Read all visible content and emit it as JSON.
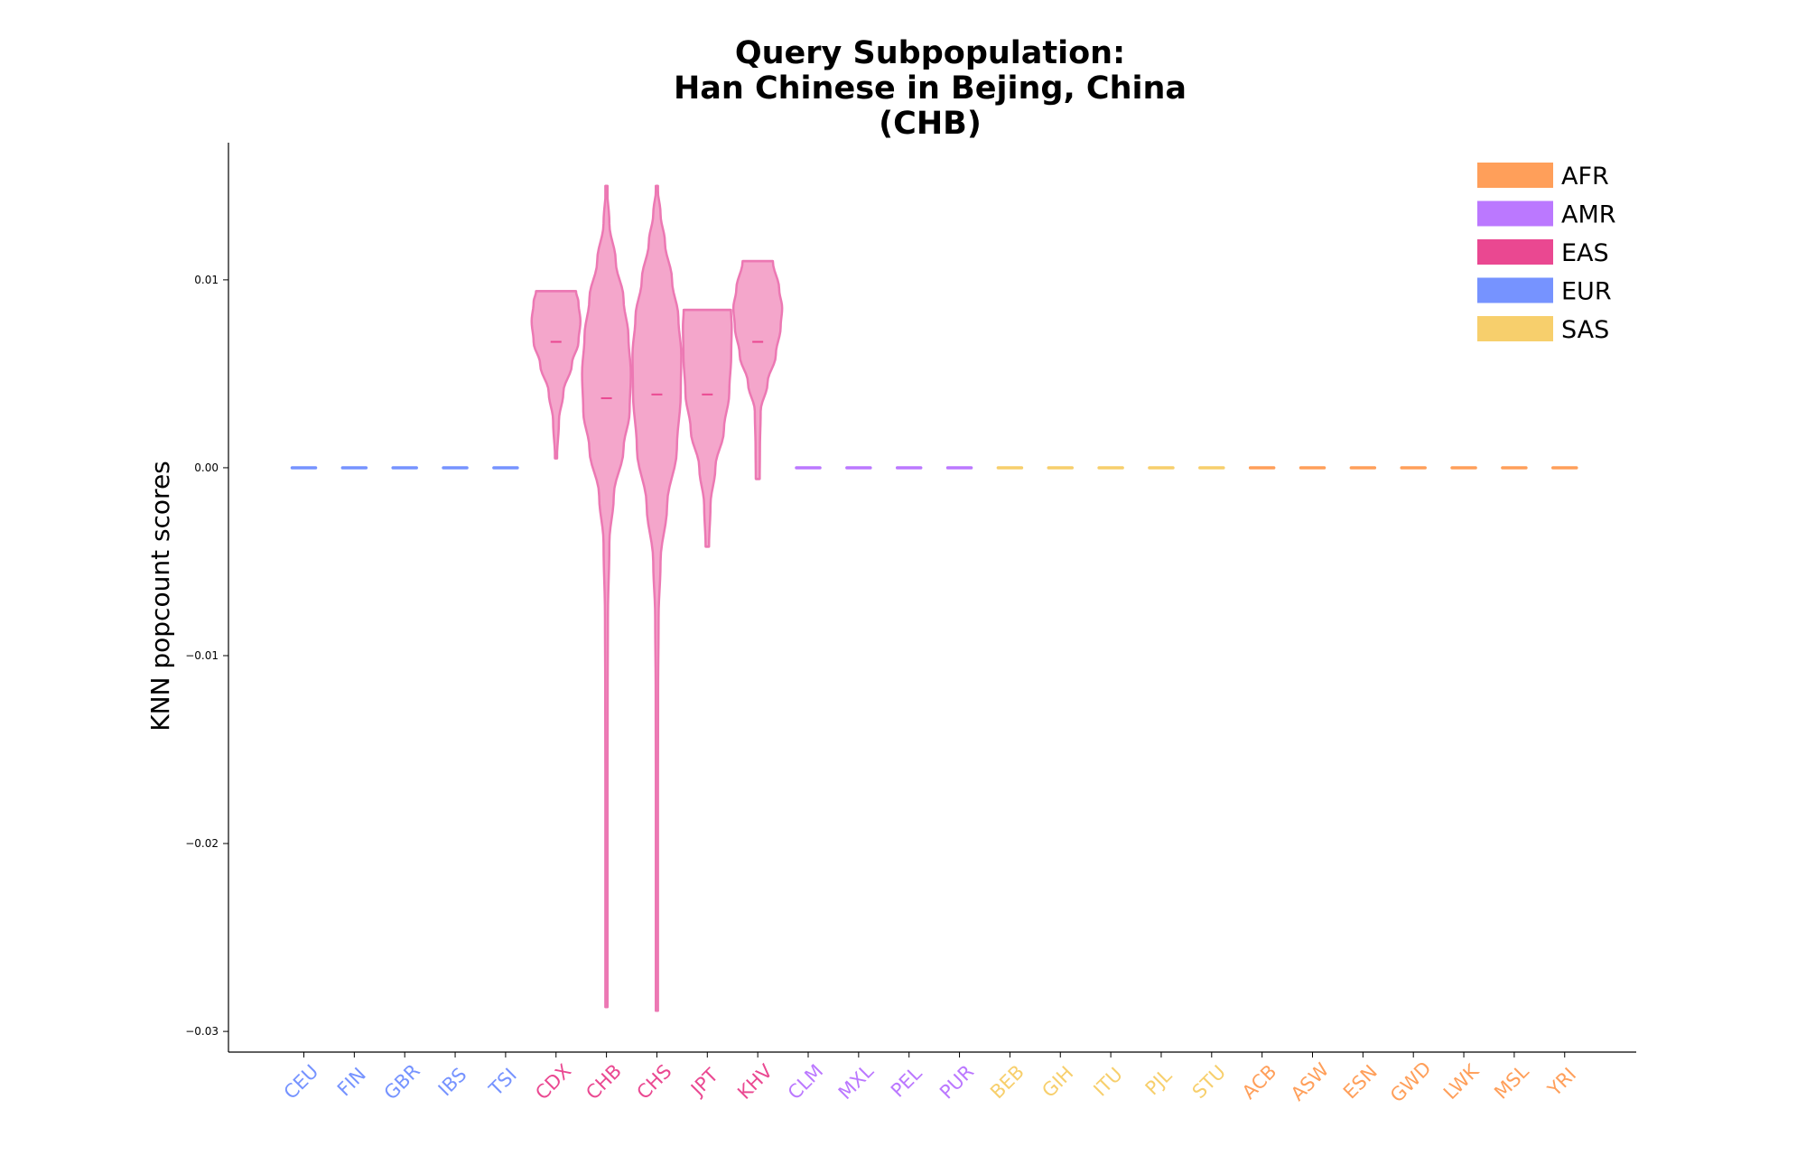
{
  "chart_data": {
    "type": "violin",
    "title_lines": [
      "Query Subpopulation:",
      "Han Chinese in Bejing, China",
      "(CHB)"
    ],
    "xlabel": "",
    "ylabel": "KNN popcount scores",
    "ylim": [
      -0.0311,
      0.0173
    ],
    "yticks": [
      {
        "value": 0.01,
        "label": "0.01"
      },
      {
        "value": 0.0,
        "label": "0.00"
      },
      {
        "value": -0.01,
        "label": "−0.01"
      },
      {
        "value": -0.02,
        "label": "−0.02"
      },
      {
        "value": -0.03,
        "label": "−0.03"
      }
    ],
    "grid": false,
    "legend_position": "top-right",
    "colors": {
      "AFR": "#ff9f5a",
      "AMR": "#bb78ff",
      "EAS": "#ea4891",
      "EUR": "#7693ff",
      "SAS": "#f7cf6c"
    },
    "legend": [
      {
        "name": "AFR",
        "color": "#ff9f5a"
      },
      {
        "name": "AMR",
        "color": "#bb78ff"
      },
      {
        "name": "EAS",
        "color": "#ea4891"
      },
      {
        "name": "EUR",
        "color": "#7693ff"
      },
      {
        "name": "SAS",
        "color": "#f7cf6c"
      }
    ],
    "violin_fill": "#f4a6cb",
    "violin_edge": "#ec78b3",
    "categories": [
      {
        "name": "CEU",
        "group": "EUR"
      },
      {
        "name": "FIN",
        "group": "EUR"
      },
      {
        "name": "GBR",
        "group": "EUR"
      },
      {
        "name": "IBS",
        "group": "EUR"
      },
      {
        "name": "TSI",
        "group": "EUR"
      },
      {
        "name": "CDX",
        "group": "EAS",
        "min": 0.0005,
        "max": 0.0094,
        "median": 0.0067,
        "profile": [
          [
            0.0005,
            0.04
          ],
          [
            0.0025,
            0.12
          ],
          [
            0.004,
            0.3
          ],
          [
            0.0055,
            0.65
          ],
          [
            0.0067,
            0.92
          ],
          [
            0.0078,
            1.0
          ],
          [
            0.0088,
            0.92
          ],
          [
            0.0094,
            0.82
          ]
        ]
      },
      {
        "name": "CHB",
        "group": "EAS",
        "min": -0.0287,
        "max": 0.015,
        "median": 0.0037,
        "profile": [
          [
            -0.0287,
            0.02
          ],
          [
            -0.02,
            0.04
          ],
          [
            -0.012,
            0.05
          ],
          [
            -0.008,
            0.06
          ],
          [
            -0.004,
            0.12
          ],
          [
            -0.0015,
            0.3
          ],
          [
            0.001,
            0.7
          ],
          [
            0.003,
            0.95
          ],
          [
            0.005,
            1.0
          ],
          [
            0.007,
            0.9
          ],
          [
            0.009,
            0.7
          ],
          [
            0.011,
            0.38
          ],
          [
            0.013,
            0.12
          ],
          [
            0.015,
            0.02
          ]
        ]
      },
      {
        "name": "CHS",
        "group": "EAS",
        "min": -0.0289,
        "max": 0.015,
        "median": 0.0039,
        "profile": [
          [
            -0.0289,
            0.02
          ],
          [
            -0.02,
            0.04
          ],
          [
            -0.012,
            0.05
          ],
          [
            -0.008,
            0.07
          ],
          [
            -0.005,
            0.15
          ],
          [
            -0.002,
            0.42
          ],
          [
            0.001,
            0.82
          ],
          [
            0.004,
            0.98
          ],
          [
            0.006,
            1.0
          ],
          [
            0.008,
            0.88
          ],
          [
            0.01,
            0.62
          ],
          [
            0.012,
            0.33
          ],
          [
            0.0135,
            0.15
          ],
          [
            0.015,
            0.02
          ]
        ]
      },
      {
        "name": "JPT",
        "group": "EAS",
        "min": -0.0042,
        "max": 0.0084,
        "median": 0.0039,
        "profile": [
          [
            -0.0042,
            0.07
          ],
          [
            -0.002,
            0.13
          ],
          [
            0.0,
            0.33
          ],
          [
            0.002,
            0.68
          ],
          [
            0.004,
            0.9
          ],
          [
            0.006,
            0.98
          ],
          [
            0.0075,
            1.0
          ],
          [
            0.0084,
            0.97
          ]
        ]
      },
      {
        "name": "KHV",
        "group": "EAS",
        "min": -0.0006,
        "max": 0.011,
        "median": 0.0067,
        "profile": [
          [
            -0.0006,
            0.08
          ],
          [
            0.001,
            0.09
          ],
          [
            0.003,
            0.12
          ],
          [
            0.0045,
            0.4
          ],
          [
            0.006,
            0.74
          ],
          [
            0.0075,
            0.94
          ],
          [
            0.0085,
            1.0
          ],
          [
            0.0095,
            0.88
          ],
          [
            0.011,
            0.62
          ]
        ]
      },
      {
        "name": "CLM",
        "group": "AMR"
      },
      {
        "name": "MXL",
        "group": "AMR"
      },
      {
        "name": "PEL",
        "group": "AMR"
      },
      {
        "name": "PUR",
        "group": "AMR"
      },
      {
        "name": "BEB",
        "group": "SAS"
      },
      {
        "name": "GIH",
        "group": "SAS"
      },
      {
        "name": "ITU",
        "group": "SAS"
      },
      {
        "name": "PJL",
        "group": "SAS"
      },
      {
        "name": "STU",
        "group": "SAS"
      },
      {
        "name": "ACB",
        "group": "AFR"
      },
      {
        "name": "ASW",
        "group": "AFR"
      },
      {
        "name": "ESN",
        "group": "AFR"
      },
      {
        "name": "GWD",
        "group": "AFR"
      },
      {
        "name": "LWK",
        "group": "AFR"
      },
      {
        "name": "MSL",
        "group": "AFR"
      },
      {
        "name": "YRI",
        "group": "AFR"
      }
    ]
  }
}
